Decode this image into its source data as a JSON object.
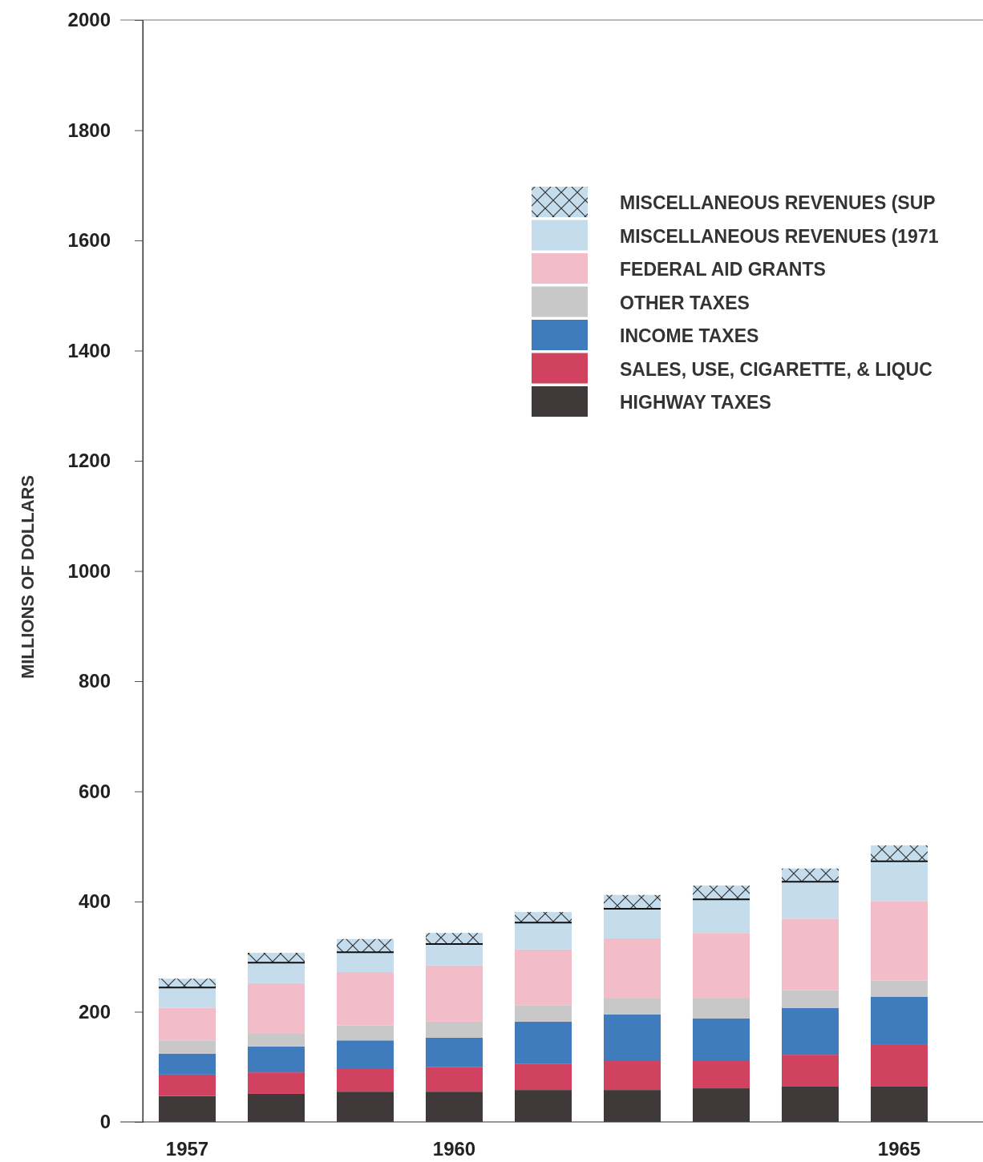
{
  "chart_data": {
    "type": "bar",
    "stacked": true,
    "ylabel": "MILLIONS OF DOLLARS",
    "categories": [
      "1957",
      null,
      null,
      "1960",
      null,
      null,
      null,
      null,
      "1965"
    ],
    "ylim": [
      0,
      2000
    ],
    "yticks": [
      0,
      200,
      400,
      600,
      800,
      1000,
      1200,
      1400,
      1600,
      1800,
      2000
    ],
    "grid": false,
    "legend": "right",
    "series": [
      {
        "name": "HIGHWAY TAXES",
        "color": "#3f3a39",
        "values": [
          47,
          51,
          55,
          55,
          58,
          58,
          61,
          64,
          64
        ]
      },
      {
        "name": "SALES, USE, CIGARETTE, & LIQUC",
        "color": "#d0425f",
        "values": [
          39,
          39,
          41,
          45,
          47,
          54,
          51,
          58,
          77
        ]
      },
      {
        "name": "INCOME TAXES",
        "color": "#3f7bbd",
        "values": [
          38,
          47,
          52,
          53,
          77,
          83,
          76,
          85,
          86
        ]
      },
      {
        "name": "OTHER TAXES",
        "color": "#c8c8c8",
        "values": [
          24,
          23,
          27,
          29,
          30,
          29,
          36,
          32,
          30
        ]
      },
      {
        "name": "FEDERAL AID GRANTS",
        "color": "#f2bcc8",
        "values": [
          59,
          92,
          97,
          102,
          101,
          109,
          119,
          130,
          144
        ]
      },
      {
        "name": "MISCELLANEOUS REVENUES (1971",
        "color": "#c4dcec",
        "values": [
          37,
          37,
          36,
          39,
          49,
          54,
          61,
          67,
          72
        ]
      },
      {
        "name": "MISCELLANEOUS REVENUES (SUP",
        "color": "#c4dcec",
        "values": [
          16,
          18,
          24,
          20,
          19,
          25,
          25,
          24,
          29
        ]
      }
    ]
  }
}
